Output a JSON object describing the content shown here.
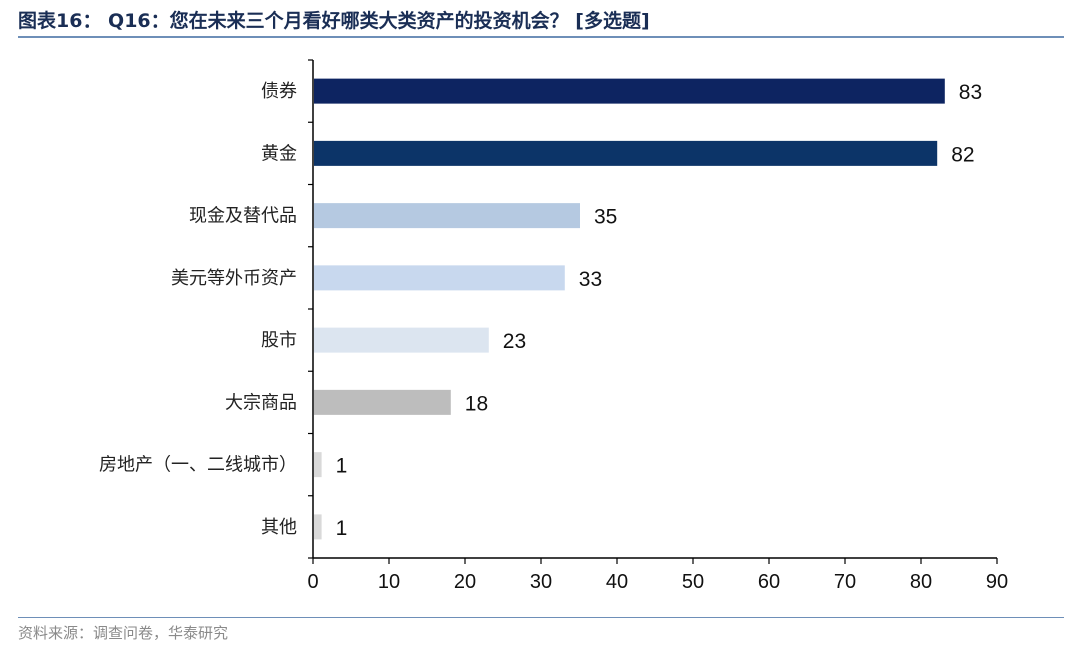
{
  "header": {
    "title": "图表16： Q16：您在未来三个月看好哪类大类资产的投资机会？ [多选题]"
  },
  "footer": {
    "source": "资料来源：调查问卷，华泰研究"
  },
  "chart_data": {
    "type": "bar",
    "orientation": "horizontal",
    "title": "",
    "xlabel": "",
    "ylabel": "",
    "categories": [
      "债券",
      "黄金",
      "现金及替代品",
      "美元等外币资产",
      "股市",
      "大宗商品",
      "房地产（一、二线城市）",
      "其他"
    ],
    "values": [
      83,
      82,
      35,
      33,
      23,
      18,
      1,
      1
    ],
    "colors": [
      "#0d2461",
      "#0c3468",
      "#b5c9e1",
      "#c8d8ee",
      "#dce5f0",
      "#bdbdbd",
      "#d9d9d9",
      "#d9d9d9"
    ],
    "xlim": [
      0,
      90
    ],
    "xticks": [
      0,
      10,
      20,
      30,
      40,
      50,
      60,
      70,
      80,
      90
    ],
    "grid": false,
    "data_labels": true
  }
}
